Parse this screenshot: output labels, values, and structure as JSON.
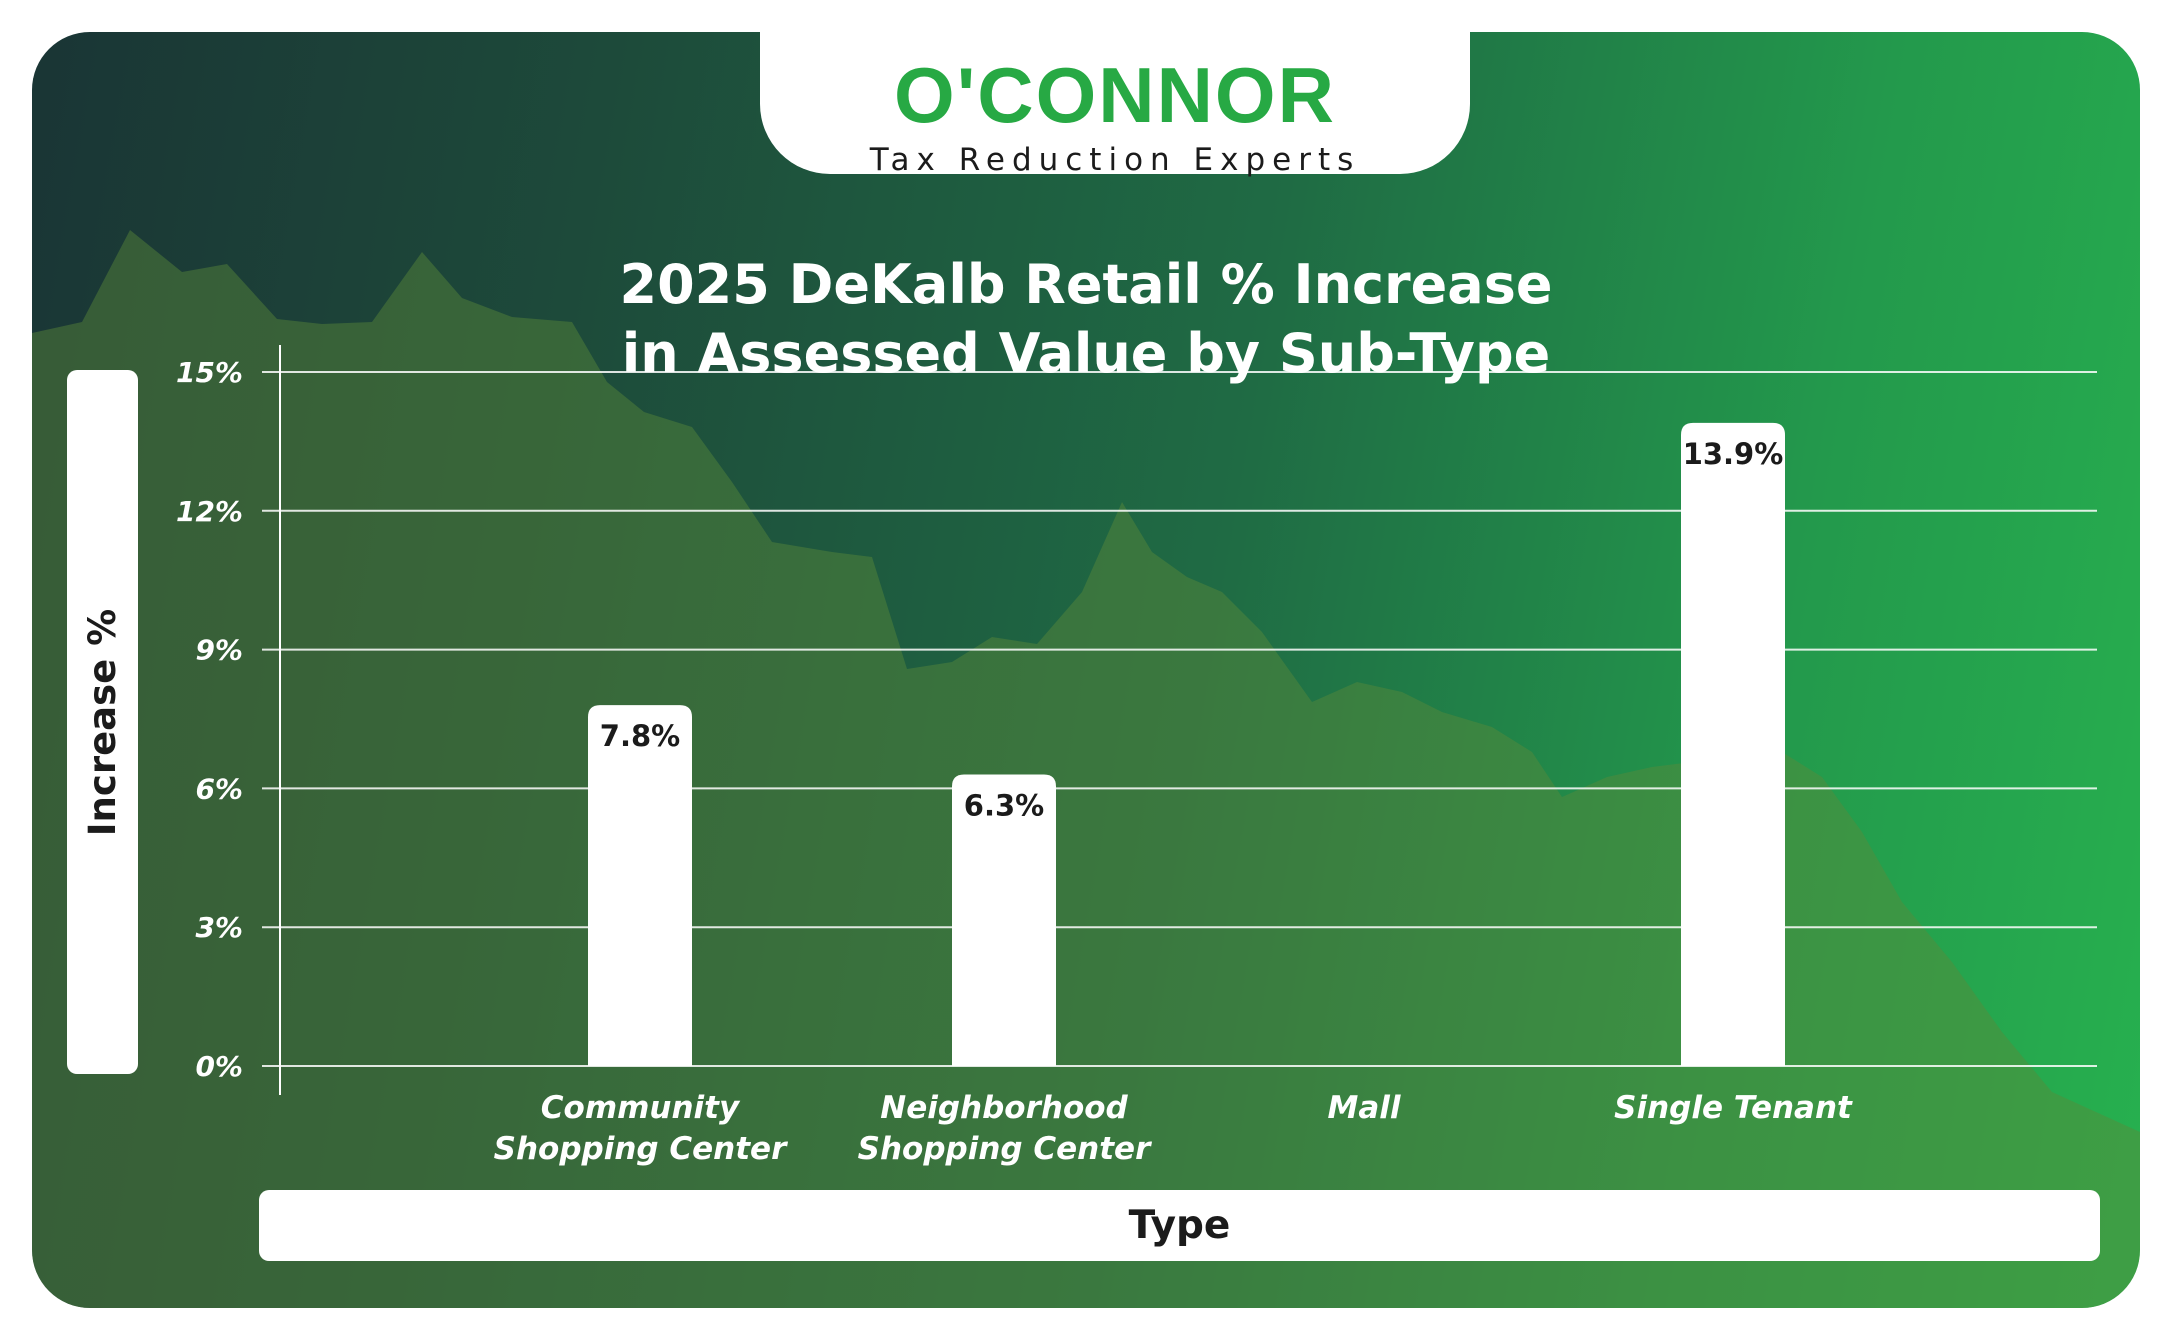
{
  "logo": {
    "wordmark": "O'CONNOR",
    "tagline": "Tax Reduction Experts"
  },
  "colors": {
    "background_dark": "#1a3535",
    "background_green": "#27b14f",
    "brand_green": "#27a944",
    "bar": "#ffffff",
    "text": "#1b1b1b"
  },
  "chart_data": {
    "type": "bar",
    "title_lines": [
      "2025 DeKalb Retail % Increase",
      "in Assessed Value by Sub-Type"
    ],
    "xlabel": "Type",
    "ylabel": "Increase %",
    "ylim": [
      0,
      15
    ],
    "yticks": [
      "0%",
      "3%",
      "6%",
      "9%",
      "12%",
      "15%"
    ],
    "ytick_values": [
      0,
      3,
      6,
      9,
      12,
      15
    ],
    "grid": true,
    "categories": [
      [
        "Community",
        "Shopping Center"
      ],
      [
        "Neighborhood",
        "Shopping Center"
      ],
      [
        "Mall"
      ],
      [
        "Single Tenant"
      ]
    ],
    "values": [
      7.8,
      6.3,
      null,
      13.9
    ],
    "data_labels": [
      "7.8%",
      "6.3%",
      "",
      "13.9%"
    ]
  }
}
